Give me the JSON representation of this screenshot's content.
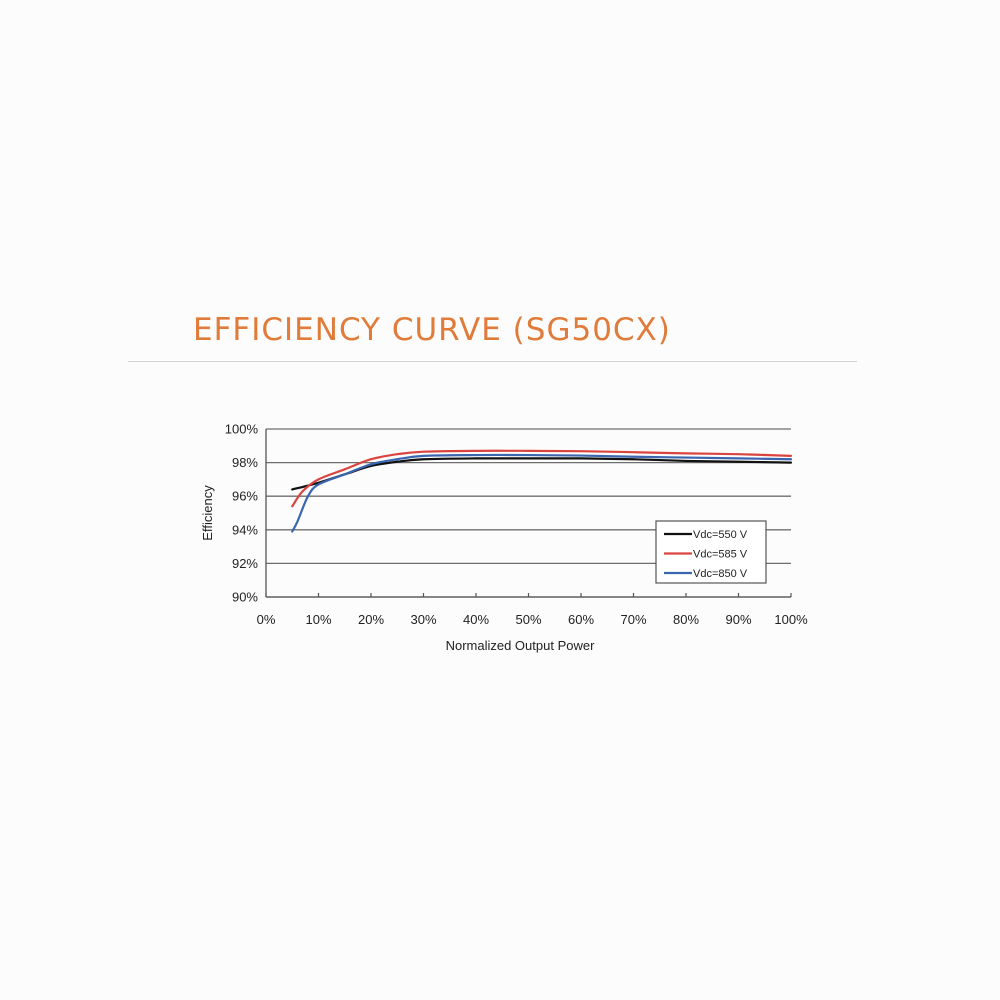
{
  "page": {
    "title": "EFFICIENCY CURVE (SG50CX)",
    "accent_color": "#e07b39"
  },
  "chart_data": {
    "type": "line",
    "title": "EFFICIENCY CURVE (SG50CX)",
    "xlabel": "Normalized Output Power",
    "ylabel": "Efficiency",
    "xlim": [
      0,
      100
    ],
    "ylim": [
      90,
      100
    ],
    "x_ticks": [
      "0%",
      "10%",
      "20%",
      "30%",
      "40%",
      "50%",
      "60%",
      "70%",
      "80%",
      "90%",
      "100%"
    ],
    "y_ticks": [
      "90%",
      "92%",
      "94%",
      "96%",
      "98%",
      "100%"
    ],
    "grid": "horizontal",
    "legend_position": "lower right",
    "series": [
      {
        "name": "Vdc=550 V",
        "color": "#111111",
        "x": [
          5,
          10,
          15,
          20,
          25,
          30,
          40,
          50,
          60,
          70,
          80,
          90,
          100
        ],
        "values": [
          96.4,
          96.8,
          97.3,
          97.8,
          98.05,
          98.2,
          98.25,
          98.25,
          98.25,
          98.2,
          98.1,
          98.05,
          98.0
        ]
      },
      {
        "name": "Vdc=585 V",
        "color": "#d9443f",
        "x": [
          5,
          7,
          10,
          15,
          20,
          25,
          30,
          40,
          50,
          60,
          70,
          80,
          90,
          100
        ],
        "values": [
          95.4,
          96.3,
          97.0,
          97.6,
          98.2,
          98.5,
          98.65,
          98.7,
          98.7,
          98.68,
          98.62,
          98.55,
          98.5,
          98.4
        ]
      },
      {
        "name": "Vdc=850 V",
        "color": "#3a66b0",
        "x": [
          5,
          6,
          8,
          10,
          15,
          20,
          25,
          30,
          40,
          50,
          60,
          70,
          80,
          90,
          100
        ],
        "values": [
          93.9,
          94.5,
          96.0,
          96.7,
          97.3,
          97.9,
          98.2,
          98.4,
          98.45,
          98.45,
          98.42,
          98.35,
          98.3,
          98.25,
          98.2
        ]
      }
    ]
  }
}
